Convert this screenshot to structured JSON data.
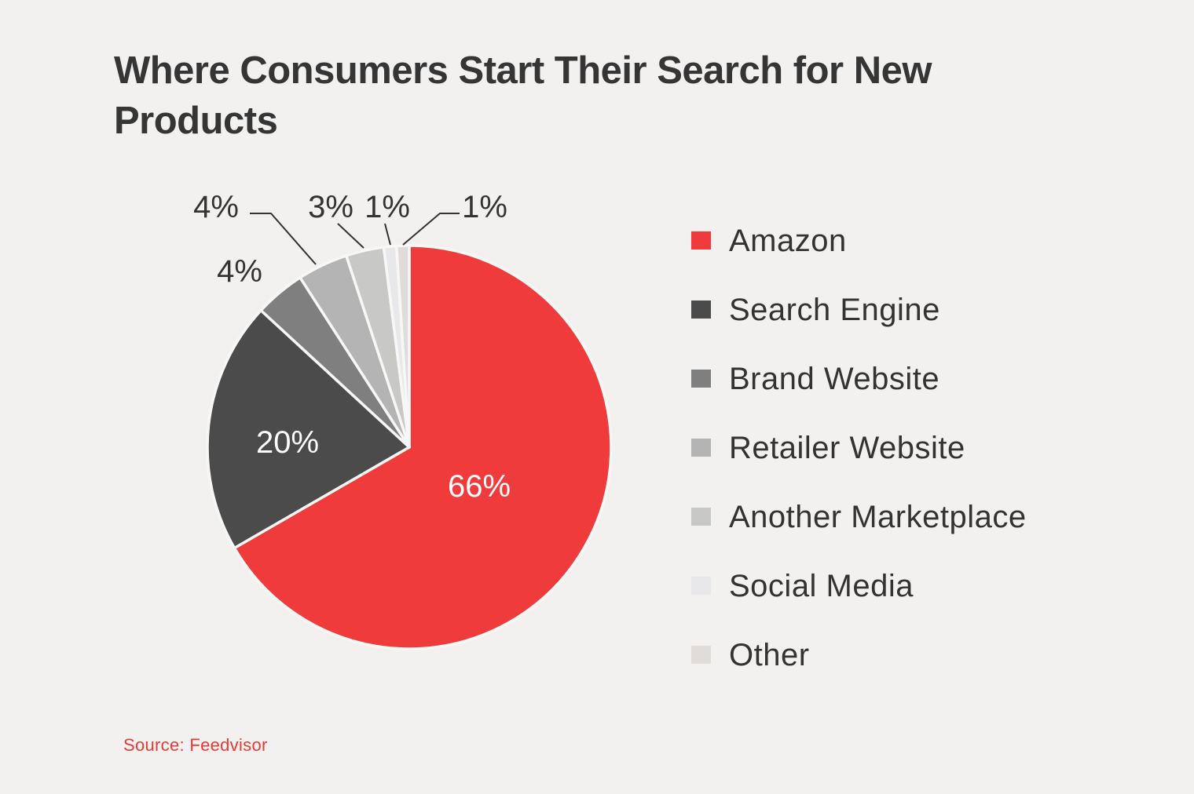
{
  "chart_data": {
    "type": "pie",
    "title": "Where Consumers Start Their Search for New Products",
    "source": "Source: Feedvisor",
    "legend_position": "right",
    "start_angle": "top, clockwise",
    "slices": [
      {
        "label": "Amazon",
        "value": 66,
        "display": "66%",
        "color": "#ef3b3b"
      },
      {
        "label": "Search Engine",
        "value": 20,
        "display": "20%",
        "color": "#4b4b4b"
      },
      {
        "label": "Brand Website",
        "value": 4,
        "display": "4%",
        "color": "#7f7f7f"
      },
      {
        "label": "Retailer Website",
        "value": 4,
        "display": "4%",
        "color": "#b3b4b3"
      },
      {
        "label": "Another Marketplace",
        "value": 3,
        "display": "3%",
        "color": "#c8c8c7"
      },
      {
        "label": "Social Media",
        "value": 1,
        "display": "1%",
        "color": "#e8e7e9"
      },
      {
        "label": "Other",
        "value": 1,
        "display": "1%",
        "color": "#e0dcda"
      }
    ]
  }
}
